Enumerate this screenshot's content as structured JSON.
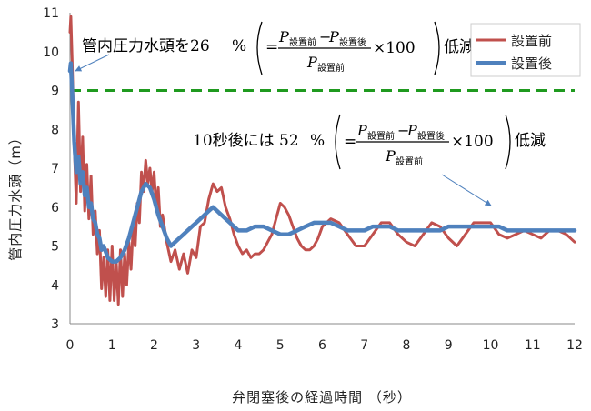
{
  "chart_data": {
    "type": "line",
    "xlabel": "弁閉塞後の経過時間 （秒）",
    "ylabel": "管内圧力水頭（m）",
    "xlim": [
      0,
      12
    ],
    "ylim": [
      3,
      11
    ],
    "xticks": [
      "0",
      "1",
      "2",
      "3",
      "4",
      "5",
      "6",
      "7",
      "8",
      "9",
      "10",
      "11",
      "12"
    ],
    "yticks": [
      "3",
      "4",
      "5",
      "6",
      "7",
      "8",
      "9",
      "10",
      "11"
    ],
    "legend": {
      "position": "top-right",
      "entries": [
        "設置前",
        "設置後"
      ]
    },
    "reference_line": {
      "y": 9.0,
      "color": "#1f9a1f",
      "style": "dashed"
    },
    "series": [
      {
        "name": "設置前",
        "color": "#c0504d",
        "x": [
          0,
          0.02,
          0.05,
          0.1,
          0.15,
          0.2,
          0.25,
          0.3,
          0.35,
          0.4,
          0.45,
          0.5,
          0.55,
          0.6,
          0.65,
          0.7,
          0.75,
          0.8,
          0.85,
          0.9,
          0.95,
          1.0,
          1.05,
          1.1,
          1.15,
          1.2,
          1.25,
          1.3,
          1.35,
          1.4,
          1.45,
          1.5,
          1.55,
          1.6,
          1.65,
          1.7,
          1.75,
          1.8,
          1.85,
          1.9,
          1.95,
          2.0,
          2.05,
          2.1,
          2.15,
          2.2,
          2.3,
          2.4,
          2.5,
          2.6,
          2.7,
          2.8,
          2.9,
          3.0,
          3.1,
          3.2,
          3.3,
          3.4,
          3.5,
          3.6,
          3.7,
          3.8,
          3.9,
          4.0,
          4.1,
          4.2,
          4.3,
          4.4,
          4.5,
          4.6,
          4.7,
          4.8,
          4.9,
          5.0,
          5.1,
          5.2,
          5.3,
          5.4,
          5.5,
          5.6,
          5.7,
          5.8,
          5.9,
          6.0,
          6.2,
          6.4,
          6.6,
          6.8,
          7.0,
          7.2,
          7.4,
          7.6,
          7.8,
          8.0,
          8.2,
          8.4,
          8.6,
          8.8,
          9.0,
          9.2,
          9.4,
          9.6,
          9.8,
          10.0,
          10.2,
          10.4,
          10.6,
          10.8,
          11.0,
          11.2,
          11.4,
          11.6,
          11.8,
          12.0
        ],
        "values": [
          10.5,
          10.9,
          9.8,
          7.6,
          6.1,
          8.7,
          6.4,
          7.8,
          5.9,
          7.1,
          5.7,
          6.8,
          5.3,
          5.9,
          4.8,
          5.4,
          3.9,
          4.7,
          3.7,
          4.9,
          3.6,
          5.0,
          3.6,
          4.6,
          3.5,
          4.9,
          3.7,
          4.8,
          4.0,
          5.1,
          4.4,
          5.5,
          5.0,
          6.1,
          5.6,
          6.9,
          6.4,
          7.2,
          6.6,
          7.0,
          6.4,
          6.9,
          6.0,
          6.5,
          5.5,
          5.8,
          5.1,
          4.6,
          4.9,
          4.4,
          4.8,
          4.3,
          4.9,
          4.7,
          5.5,
          5.6,
          6.2,
          6.6,
          6.4,
          6.5,
          6.0,
          5.7,
          5.3,
          5.0,
          4.8,
          4.9,
          4.7,
          4.8,
          4.8,
          4.9,
          5.1,
          5.3,
          5.7,
          6.1,
          6.0,
          5.8,
          5.5,
          5.2,
          5.0,
          4.9,
          4.9,
          5.0,
          5.2,
          5.5,
          5.7,
          5.6,
          5.3,
          5.0,
          5.0,
          5.3,
          5.6,
          5.6,
          5.3,
          5.1,
          5.0,
          5.3,
          5.6,
          5.5,
          5.2,
          5.0,
          5.3,
          5.6,
          5.6,
          5.6,
          5.3,
          5.2,
          5.3,
          5.4,
          5.3,
          5.2,
          5.4,
          5.4,
          5.3,
          5.1
        ]
      },
      {
        "name": "設置後",
        "color": "#4f81bd",
        "x": [
          0,
          0.02,
          0.05,
          0.1,
          0.15,
          0.2,
          0.25,
          0.3,
          0.35,
          0.4,
          0.45,
          0.5,
          0.55,
          0.6,
          0.65,
          0.7,
          0.75,
          0.8,
          0.9,
          1.0,
          1.1,
          1.2,
          1.3,
          1.4,
          1.5,
          1.6,
          1.7,
          1.8,
          1.9,
          2.0,
          2.1,
          2.2,
          2.3,
          2.4,
          2.5,
          2.6,
          2.7,
          2.8,
          2.9,
          3.0,
          3.1,
          3.2,
          3.3,
          3.4,
          3.5,
          3.6,
          3.7,
          3.8,
          3.9,
          4.0,
          4.2,
          4.4,
          4.6,
          4.8,
          5.0,
          5.2,
          5.4,
          5.6,
          5.8,
          6.0,
          6.2,
          6.4,
          6.6,
          6.8,
          7.0,
          7.2,
          7.4,
          7.6,
          7.8,
          8.0,
          8.2,
          8.4,
          8.6,
          8.8,
          9.0,
          9.2,
          9.4,
          9.6,
          9.8,
          10.0,
          10.2,
          10.4,
          10.6,
          10.8,
          11.0,
          11.2,
          11.4,
          11.6,
          11.8,
          12.0
        ],
        "values": [
          9.5,
          9.7,
          9.0,
          7.7,
          6.9,
          7.3,
          6.6,
          6.9,
          6.3,
          6.5,
          6.0,
          6.1,
          5.7,
          5.6,
          5.3,
          5.2,
          4.9,
          5.0,
          4.7,
          4.6,
          4.6,
          4.7,
          4.9,
          5.2,
          5.6,
          6.0,
          6.4,
          6.6,
          6.5,
          6.2,
          5.8,
          5.5,
          5.2,
          5.0,
          5.1,
          5.2,
          5.3,
          5.4,
          5.5,
          5.6,
          5.7,
          5.8,
          5.9,
          6.0,
          5.9,
          5.8,
          5.7,
          5.6,
          5.5,
          5.4,
          5.4,
          5.5,
          5.5,
          5.4,
          5.3,
          5.3,
          5.4,
          5.5,
          5.6,
          5.6,
          5.6,
          5.5,
          5.4,
          5.4,
          5.4,
          5.5,
          5.5,
          5.5,
          5.4,
          5.4,
          5.4,
          5.4,
          5.4,
          5.4,
          5.5,
          5.5,
          5.5,
          5.5,
          5.5,
          5.5,
          5.5,
          5.4,
          5.4,
          5.4,
          5.4,
          5.4,
          5.4,
          5.4,
          5.4,
          5.4
        ]
      }
    ],
    "annotations": [
      {
        "text_prefix": "管内圧力水頭を26",
        "percent": "%",
        "eq": "=",
        "p": "P",
        "sub_before": "設置前",
        "sub_after": "設置後",
        "minus": "−",
        "times": "×100",
        "suffix": "低減"
      },
      {
        "text_prefix": "10秒後には 52",
        "percent": "%",
        "eq": "=",
        "p": "P",
        "sub_before": "設置前",
        "sub_after": "設置後",
        "minus": "−",
        "times": "×100",
        "suffix": "低減"
      }
    ]
  }
}
